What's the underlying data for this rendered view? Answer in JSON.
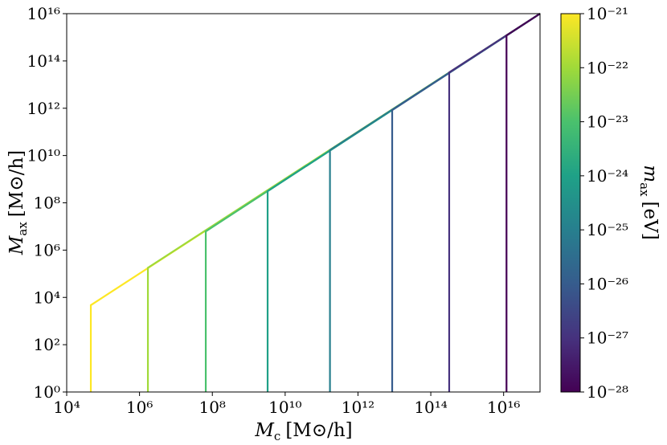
{
  "chart_data": {
    "type": "line",
    "xlabel": {
      "symbol": "M",
      "sub": "c",
      "unit": "[M⊙/h]"
    },
    "ylabel": {
      "symbol": "M",
      "sub": "ax",
      "unit": "[M⊙/h]"
    },
    "xscale": "log",
    "yscale": "log",
    "xlim": [
      10000.0,
      1e+17
    ],
    "ylim": [
      1,
      1e+16
    ],
    "xticks": [
      {
        "value": 10000.0,
        "label": "10⁴"
      },
      {
        "value": 1000000.0,
        "label": "10⁶"
      },
      {
        "value": 100000000.0,
        "label": "10⁸"
      },
      {
        "value": 10000000000.0,
        "label": "10¹⁰"
      },
      {
        "value": 1000000000000.0,
        "label": "10¹²"
      },
      {
        "value": 100000000000000.0,
        "label": "10¹⁴"
      },
      {
        "value": 1e+16,
        "label": "10¹⁶"
      }
    ],
    "yticks": [
      {
        "value": 1,
        "label": "10⁰"
      },
      {
        "value": 100,
        "label": "10²"
      },
      {
        "value": 10000.0,
        "label": "10⁴"
      },
      {
        "value": 1000000.0,
        "label": "10⁶"
      },
      {
        "value": 100000000.0,
        "label": "10⁸"
      },
      {
        "value": 10000000000.0,
        "label": "10¹⁰"
      },
      {
        "value": 1000000000000.0,
        "label": "10¹²"
      },
      {
        "value": 100000000000000.0,
        "label": "10¹⁴"
      },
      {
        "value": 1e+16,
        "label": "10¹⁶"
      }
    ],
    "series": [
      {
        "color": "#fde725",
        "x": [
          46000.0,
          46000.0,
          1e+17
        ],
        "values": [
          1,
          4700.0,
          1e+16
        ]
      },
      {
        "color": "#a0da39",
        "x": [
          1700000.0,
          1700000.0,
          1e+17
        ],
        "values": [
          1,
          180000.0,
          1e+16
        ]
      },
      {
        "color": "#4ac16d",
        "x": [
          66000000.0,
          66000000.0,
          1e+17
        ],
        "values": [
          1,
          6200000.0,
          1e+16
        ]
      },
      {
        "color": "#1fa187",
        "x": [
          3300000000.0,
          3300000000.0,
          1e+17
        ],
        "values": [
          1,
          310000000.0,
          1e+16
        ]
      },
      {
        "color": "#277f8e",
        "x": [
          170000000000.0,
          170000000000.0,
          1e+17
        ],
        "values": [
          1,
          17000000000.0,
          1e+16
        ]
      },
      {
        "color": "#365c8d",
        "x": [
          8700000000000.0,
          8700000000000.0,
          1e+17
        ],
        "values": [
          1,
          830000000000.0,
          1e+16
        ]
      },
      {
        "color": "#46327e",
        "x": [
          320000000000000.0,
          320000000000000.0,
          1e+17
        ],
        "values": [
          1,
          33000000000000.0,
          1e+16
        ]
      },
      {
        "color": "#440154",
        "x": [
          1.2e+16,
          1.2e+16,
          1e+17
        ],
        "values": [
          1,
          1200000000000000.0,
          1e+16
        ]
      }
    ],
    "colorbar": {
      "label": {
        "symbol": "m",
        "sub": "ax",
        "unit": "[eV]"
      },
      "lim": [
        1e-28,
        1e-21
      ],
      "colors": [
        "#440154",
        "#46327e",
        "#365c8d",
        "#277f8e",
        "#1fa187",
        "#4ac16d",
        "#a0da39",
        "#fde725"
      ],
      "ticks": [
        {
          "value": 1e-21,
          "label": "10⁻²¹"
        },
        {
          "value": 1e-22,
          "label": "10⁻²²"
        },
        {
          "value": 1e-23,
          "label": "10⁻²³"
        },
        {
          "value": 1e-24,
          "label": "10⁻²⁴"
        },
        {
          "value": 1e-25,
          "label": "10⁻²⁵"
        },
        {
          "value": 1e-26,
          "label": "10⁻²⁶"
        },
        {
          "value": 1e-27,
          "label": "10⁻²⁷"
        },
        {
          "value": 1e-28,
          "label": "10⁻²⁸"
        }
      ]
    }
  }
}
